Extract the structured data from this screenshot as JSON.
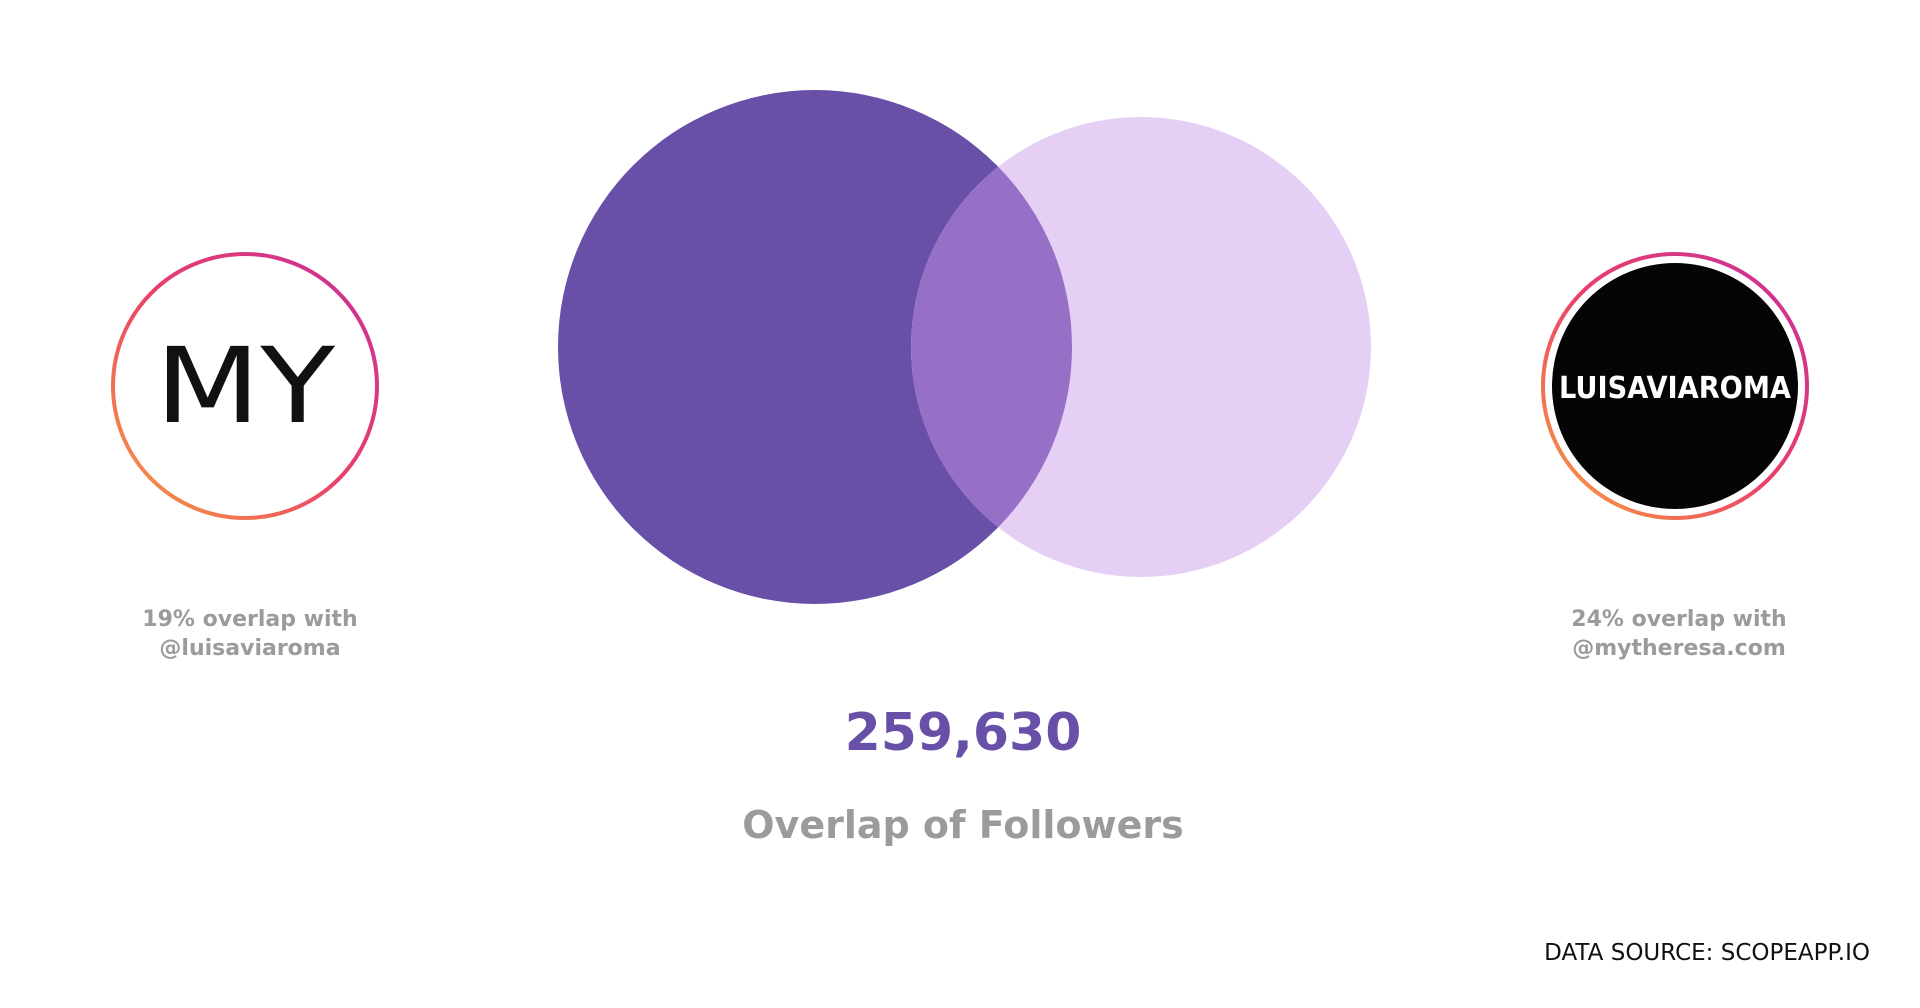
{
  "left": {
    "logo": "MY",
    "caption": [
      "19% overlap with",
      "@luisaviaroma"
    ]
  },
  "right": {
    "logo": "LUISAVIAROMA",
    "caption": [
      "24% overlap with",
      "@mytheresa.com"
    ]
  },
  "overlap": {
    "value": "259,630",
    "label": "Overlap of Followers"
  },
  "source": "DATA SOURCE: SCOPEAPP.IO"
}
